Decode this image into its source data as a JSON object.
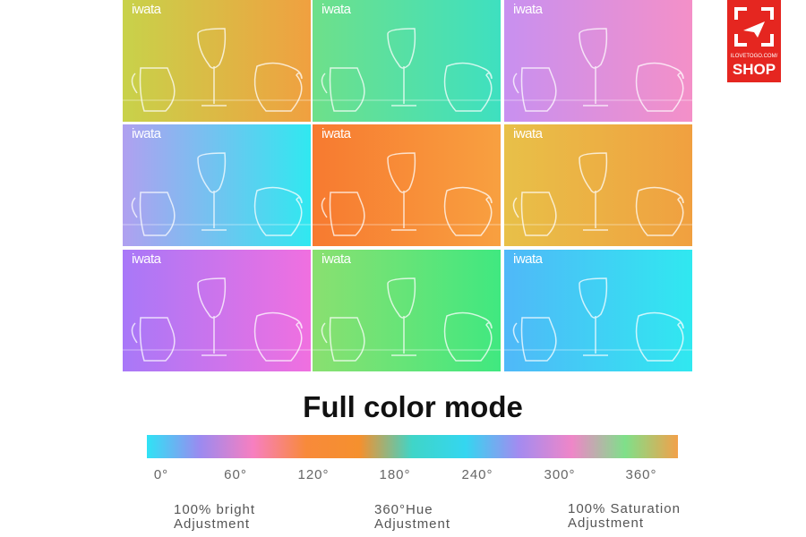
{
  "panels": [
    {
      "label": "iwata"
    },
    {
      "label": "iwata"
    },
    {
      "label": "iwata"
    },
    {
      "label": "iwata"
    },
    {
      "label": "iwata"
    },
    {
      "label": "iwata"
    },
    {
      "label": "iwata"
    },
    {
      "label": "iwata"
    },
    {
      "label": "iwata"
    }
  ],
  "title": "Full color mode",
  "scale_labels": [
    "0°",
    "60°",
    "120°",
    "180°",
    "240°",
    "300°",
    "360°"
  ],
  "features": [
    {
      "line1": "100% bright",
      "line2": "Adjustment"
    },
    {
      "line1": "360°Hue",
      "line2": "Adjustment"
    },
    {
      "line1": "100% Saturation",
      "line2": "Adjustment"
    }
  ],
  "logo": {
    "site": "ILOVETOGO.COM/",
    "text": "SHOP"
  }
}
